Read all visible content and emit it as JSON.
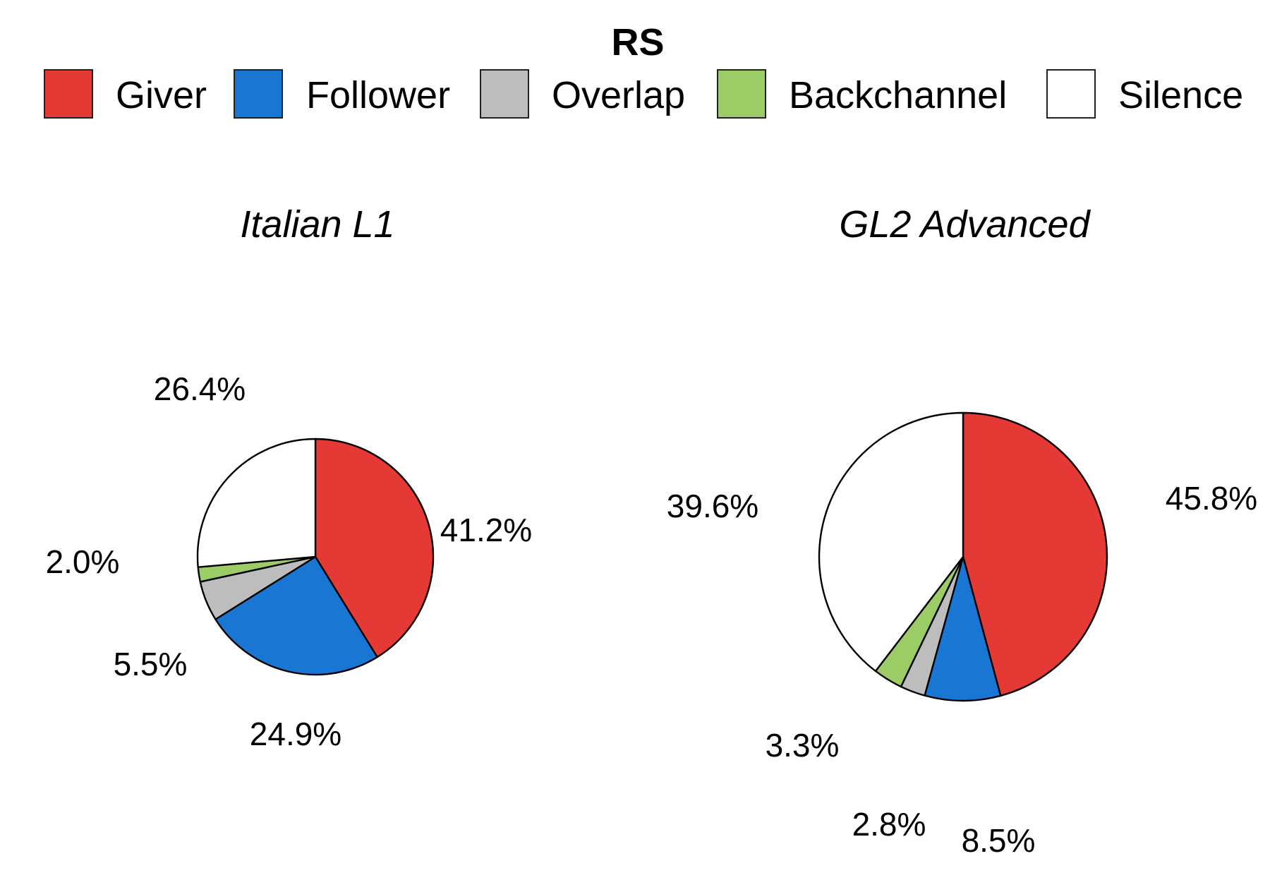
{
  "chart_data": {
    "type": "pie",
    "legend": {
      "title": "RS",
      "placement": "top",
      "entries": [
        {
          "label": "Giver",
          "color": "#E53935"
        },
        {
          "label": "Follower",
          "color": "#1976D2"
        },
        {
          "label": "Overlap",
          "color": "#BDBDBD"
        },
        {
          "label": "Backchannel",
          "color": "#9CCC65"
        },
        {
          "label": "Silence",
          "color": "#FFFFFF"
        }
      ]
    },
    "charts": [
      {
        "title": "Italian L1",
        "slices": [
          {
            "category": "Giver",
            "value": 41.2,
            "label": "41.2%"
          },
          {
            "category": "Follower",
            "value": 24.9,
            "label": "24.9%"
          },
          {
            "category": "Overlap",
            "value": 5.5,
            "label": "5.5%"
          },
          {
            "category": "Backchannel",
            "value": 2.0,
            "label": "2.0%"
          },
          {
            "category": "Silence",
            "value": 26.4,
            "label": "26.4%"
          }
        ]
      },
      {
        "title": "GL2 Advanced",
        "slices": [
          {
            "category": "Giver",
            "value": 45.8,
            "label": "45.8%"
          },
          {
            "category": "Follower",
            "value": 8.5,
            "label": "8.5%"
          },
          {
            "category": "Overlap",
            "value": 2.8,
            "label": "2.8%"
          },
          {
            "category": "Backchannel",
            "value": 3.3,
            "label": "3.3%"
          },
          {
            "category": "Silence",
            "value": 39.6,
            "label": "39.6%"
          }
        ]
      }
    ]
  }
}
